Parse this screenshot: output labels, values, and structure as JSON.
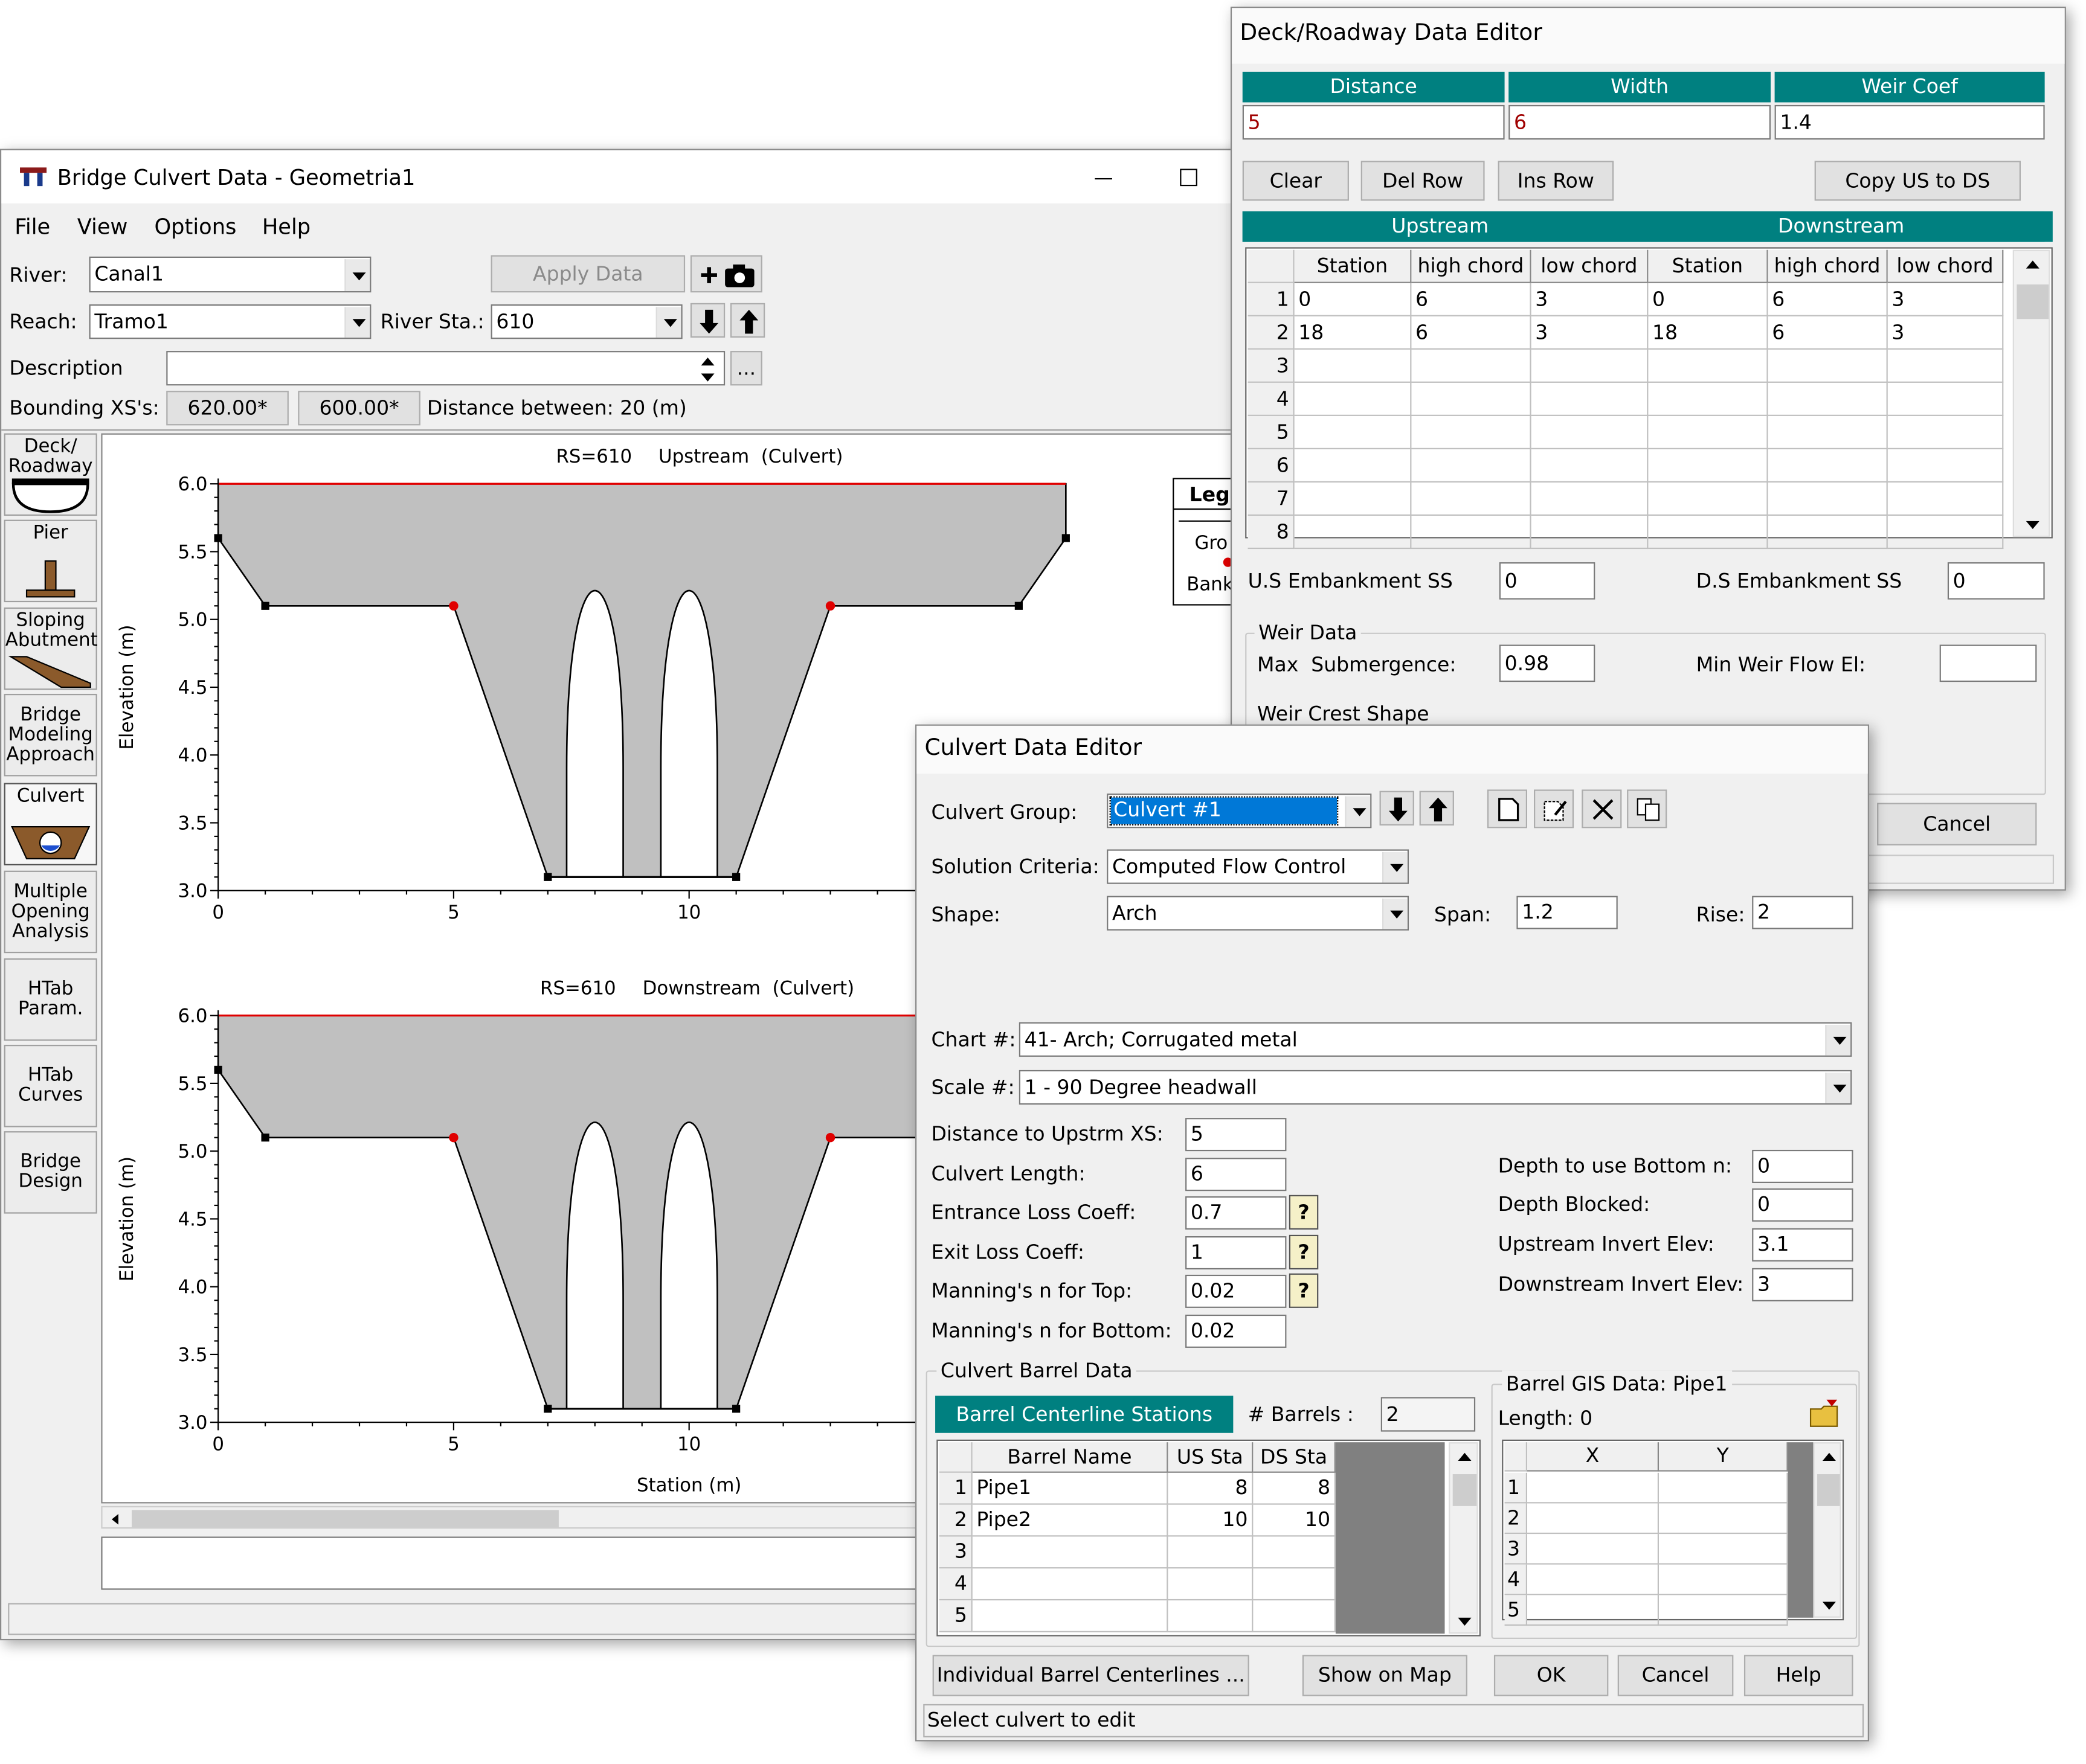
{
  "bridge_window": {
    "title": "Bridge Culvert Data - Geometria1",
    "menu": [
      "File",
      "View",
      "Options",
      "Help"
    ],
    "river_label": "River:",
    "river": "Canal1",
    "apply_data": "Apply Data",
    "reach_label": "Reach:",
    "reach": "Tramo1",
    "river_sta_label": "River Sta.:",
    "river_sta": "610",
    "description_label": "Description",
    "browse_button": "...",
    "bounding_label": "Bounding XS's:",
    "bounding_upstream": "620.00*",
    "bounding_downstream": "600.00*",
    "distance_between": "Distance between: 20 (m)",
    "tools": [
      "Deck/ Roadway",
      "Pier",
      "Sloping Abutment",
      "Bridge Modeling Approach",
      "Culvert",
      "Multiple Opening Analysis",
      "HTab Param.",
      "HTab Curves",
      "Bridge Design"
    ],
    "plots": [
      {
        "rs": "RS=610",
        "title": "Upstream  (Culvert)",
        "y_label": "Elevation (m)",
        "yticks": [
          "6.0",
          "5.5",
          "5.0",
          "4.5",
          "4.0",
          "3.5",
          "3.0"
        ],
        "xticks": [
          "0",
          "5",
          "10"
        ]
      },
      {
        "rs": "RS=610",
        "title": "Downstream  (Culvert)",
        "y_label": "Elevation (m)",
        "x_label": "Station (m)",
        "yticks": [
          "6.0",
          "5.5",
          "5.0",
          "4.5",
          "4.0",
          "3.5",
          "3.0"
        ],
        "xticks": [
          "0",
          "5",
          "10"
        ]
      }
    ],
    "legend": {
      "title": "Leg",
      "items": [
        "Gro",
        "Bank"
      ]
    }
  },
  "deck_editor": {
    "title": "Deck/Roadway Data Editor",
    "columns": [
      "Distance",
      "Width",
      "Weir Coef"
    ],
    "values": [
      "5",
      "6",
      "1.4"
    ],
    "buttons": [
      "Clear",
      "Del Row",
      "Ins Row",
      "Copy US to DS"
    ],
    "groups": [
      "Upstream",
      "Downstream"
    ],
    "table_columns": [
      "Station",
      "high chord",
      "low chord",
      "Station",
      "high chord",
      "low chord"
    ],
    "row_numbers": [
      "1",
      "2",
      "3",
      "4",
      "5",
      "6",
      "7",
      "8"
    ],
    "rows": [
      [
        "0",
        "6",
        "3",
        "0",
        "6",
        "3"
      ],
      [
        "18",
        "6",
        "3",
        "18",
        "6",
        "3"
      ]
    ],
    "us_embankment_label": "U.S Embankment SS",
    "us_embankment": "0",
    "ds_embankment_label": "D.S Embankment SS",
    "ds_embankment": "0",
    "weir_data": "Weir Data",
    "max_submergence_label": "Max  Submergence:",
    "max_submergence": "0.98",
    "min_weir_flow_label": "Min Weir Flow El:",
    "weir_crest_shape": "Weir Crest Shape",
    "cancel": "Cancel"
  },
  "culvert_editor": {
    "title": "Culvert Data Editor",
    "culvert_group_label": "Culvert Group:",
    "culvert_group": "Culvert #1",
    "solution_label": "Solution Criteria:",
    "solution": "Computed Flow Control",
    "shape_label": "Shape:",
    "shape": "Arch",
    "span_label": "Span:",
    "span": "1.2",
    "rise_label": "Rise:",
    "rise": "2",
    "chart_label": "Chart #:",
    "chart": "41- Arch; Corrugated metal",
    "scale_label": "Scale #:",
    "scale": "1 - 90 Degree headwall",
    "help_button": "?",
    "left_fields": [
      {
        "label": "Distance to Upstrm XS:",
        "value": "5"
      },
      {
        "label": "Culvert Length:",
        "value": "6"
      },
      {
        "label": "Entrance Loss Coeff:",
        "value": "0.7"
      },
      {
        "label": "Exit Loss Coeff:",
        "value": "1"
      },
      {
        "label": "Manning's n for Top:",
        "value": "0.02"
      },
      {
        "label": "Manning's n for Bottom:",
        "value": "0.02"
      }
    ],
    "right_fields": [
      {
        "label": "Depth to use Bottom n:",
        "value": "0"
      },
      {
        "label": "Depth Blocked:",
        "value": "0"
      },
      {
        "label": "Upstream Invert Elev:",
        "value": "3.1"
      },
      {
        "label": "Downstream Invert Elev:",
        "value": "3"
      }
    ],
    "barrel_data_label": "Culvert Barrel Data",
    "centerline_button": "Barrel Centerline Stations",
    "barrels_label": "# Barrels :",
    "barrels": "2",
    "barrel_columns": [
      "Barrel Name",
      "US Sta",
      "DS Sta"
    ],
    "barrel_row_numbers": [
      "1",
      "2",
      "3",
      "4",
      "5"
    ],
    "barrel_rows": [
      [
        "Pipe1",
        "8",
        "8"
      ],
      [
        "Pipe2",
        "10",
        "10"
      ]
    ],
    "gis_label": "Barrel GIS Data: Pipe1",
    "gis_length": "Length: 0",
    "gis_columns": [
      "X",
      "Y"
    ],
    "gis_row_numbers": [
      "1",
      "2",
      "3",
      "4",
      "5"
    ],
    "buttons": [
      "Individual Barrel Centerlines ...",
      "Show on Map",
      "OK",
      "Cancel",
      "Help"
    ],
    "status": "Select culvert to edit"
  }
}
